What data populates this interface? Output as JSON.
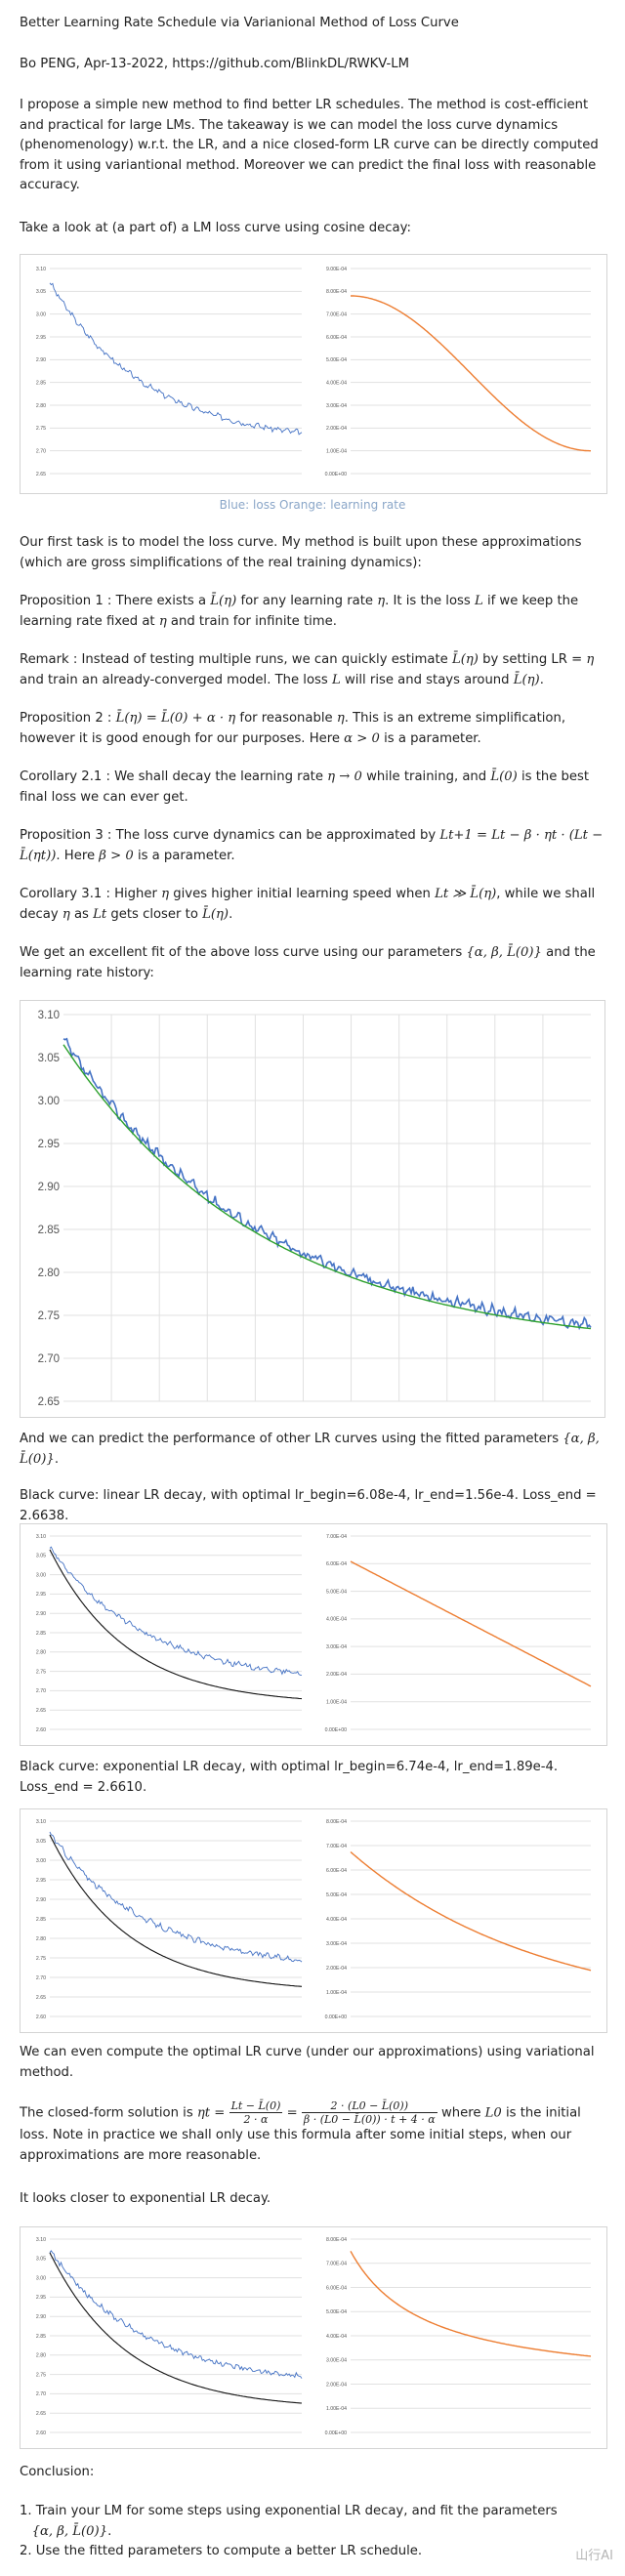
{
  "header": {
    "title": "Better Learning Rate Schedule via Varianional Method of Loss Curve",
    "byline": "Bo PENG, Apr-13-2022, https://github.com/BlinkDL/RWKV-LM"
  },
  "intro": "I propose a simple new method to find better LR schedules. The method is cost-efficient and practical for large LMs. The takeaway is we can model the loss curve dynamics (phenomenology) w.r.t. the LR, and a nice closed-form LR curve can be directly computed from it using variantional method. Moreover we can predict the final loss with reasonable accuracy.",
  "lookline": "Take a look at (a part of) a LM loss curve using cosine decay:",
  "caption": "Blue: loss Orange: learning rate",
  "task": "Our first task is to model the loss curve. My method is built upon these approximations (which are gross simplifications of the real training dynamics):",
  "prop1": {
    "a": "Proposition 1 : There exists a",
    "b": "for any learning rate",
    "c": ". It is the loss",
    "d": "if we keep the learning rate fixed at",
    "e": "and train for infinite time."
  },
  "remark": {
    "a": "Remark : Instead of testing multiple runs, we can quickly estimate",
    "b": "by setting LR =",
    "c": "and train an already-converged model. The loss",
    "d": "will rise and stays around",
    "e": "."
  },
  "prop2": {
    "a": "Proposition 2 :",
    "b": "for reasonable",
    "c": ". This is an extreme simplification, however it is good enough for our purposes. Here",
    "d": "is a parameter."
  },
  "cor21": {
    "a": "Corollary 2.1 : We shall decay the learning rate",
    "b": "while training, and",
    "c": "is the best final loss we can ever get."
  },
  "prop3": {
    "a": "Proposition 3 : The loss curve dynamics can be approximated by",
    "b": ". Here",
    "c": "is a parameter."
  },
  "cor31": {
    "a": "Corollary 3.1 : Higher",
    "b": "gives higher initial learning speed when",
    "c": ", while we shall decay",
    "d": "as",
    "e": "gets closer to",
    "f": "."
  },
  "fit": {
    "a": "We get an excellent fit of the above loss curve using our parameters",
    "b": "and the learning rate history:"
  },
  "predict": {
    "a": "And we can predict the performance of other LR curves using the fitted parameters",
    "b": "."
  },
  "black_linear": "Black curve: linear LR decay, with optimal lr_begin=6.08e-4, lr_end=1.56e-4. Loss_end = 2.6638.",
  "black_exp": "Black curve: exponential LR decay, with optimal lr_begin=6.74e-4, lr_end=1.89e-4. Loss_end = 2.6610.",
  "compute": "We can even compute the optimal LR curve (under our approximations) using variational method.",
  "closed": {
    "a": "The closed-form solution is",
    "b": "where",
    "c": "is the initial loss. Note in practice we shall only use this formula after some initial steps, when our approximations are more reasonable."
  },
  "closer": "It looks closer to exponential LR decay.",
  "conclusion": {
    "title": "Conclusion:",
    "item1a": "1. Train your LM for some steps using exponential LR decay, and fit the parameters",
    "item1b": ".",
    "item2": "2. Use the fitted parameters to compute a better LR schedule."
  },
  "math": {
    "Leta": "L̄(η)",
    "eta": "η",
    "L": "L",
    "alpha_gt0": "α > 0",
    "eta_to0": "η → 0",
    "L0bar": "L̄(0)",
    "dyn": "Lt+1 = Lt − β · ηt · (Lt − L̄(ηt))",
    "beta_gt0": "β > 0",
    "Lt": "Lt",
    "Lt_gg": "Lt ≫ L̄(η)",
    "params": "{α, β, L̄(0)}",
    "prop2eq": "L̄(η) = L̄(0) + α · η",
    "L0": "L0",
    "sol_lhs": "ηt =",
    "sol_f1_num": "Lt − L̄(0)",
    "sol_f1_den": "2 · α",
    "sol_f2_num": "2 · (L0 − L̄(0))",
    "sol_f2_den": "β · (L0 − L̄(0)) · t + 4 · α"
  },
  "watermark": "山行AI",
  "colors": {
    "loss": "#4472c4",
    "lr": "#ed7d31",
    "fit": "#2ca02c",
    "pred": "#111111"
  },
  "chart_data": [
    {
      "name": "cosine-loss",
      "type": "line",
      "ylim": [
        2.65,
        3.1
      ],
      "yticks": [
        "3.10",
        "3.05",
        "3.00",
        "2.95",
        "2.90",
        "2.85",
        "2.80",
        "2.75",
        "2.70",
        "2.65"
      ],
      "series": [
        {
          "start": 3.07,
          "end": 2.713,
          "noise": 0.006
        }
      ]
    },
    {
      "name": "cosine-lr",
      "type": "line",
      "ylim": [
        0,
        0.0009
      ],
      "yticks": [
        "9.00E-04",
        "8.00E-04",
        "7.00E-04",
        "6.00E-04",
        "5.00E-04",
        "4.00E-04",
        "3.00E-04",
        "2.00E-04",
        "1.00E-04",
        "0.00E+00"
      ],
      "series": [
        {
          "start": 0.00078,
          "end": 0.0001
        }
      ]
    },
    {
      "name": "fit-chart",
      "type": "line",
      "ylim": [
        2.65,
        3.1
      ],
      "yticks": [
        "3.10",
        "3.05",
        "3.00",
        "2.95",
        "2.90",
        "2.85",
        "2.80",
        "2.75",
        "2.70",
        "2.65"
      ],
      "series": [
        {
          "start": 3.07,
          "end": 2.713,
          "noise": 0.006
        },
        {
          "start": 3.065,
          "end": 2.708
        }
      ]
    },
    {
      "name": "linear-loss",
      "type": "line",
      "ylim": [
        2.6,
        3.1
      ],
      "yticks": [
        "3.10",
        "3.05",
        "3.00",
        "2.95",
        "2.90",
        "2.85",
        "2.80",
        "2.75",
        "2.70",
        "2.65",
        "2.60"
      ],
      "series": [
        {
          "start": 3.07,
          "end": 2.718,
          "noise": 0.007
        },
        {
          "start": 3.065,
          "end": 2.6638
        }
      ]
    },
    {
      "name": "linear-lr",
      "type": "line",
      "ylim": [
        0,
        0.0007
      ],
      "yticks": [
        "7.00E-04",
        "6.00E-04",
        "5.00E-04",
        "4.00E-04",
        "3.00E-04",
        "2.00E-04",
        "1.00E-04",
        "0.00E+00"
      ],
      "series": [
        {
          "start": 0.000608,
          "end": 0.000156
        }
      ]
    },
    {
      "name": "exp-loss",
      "type": "line",
      "ylim": [
        2.6,
        3.1
      ],
      "yticks": [
        "3.10",
        "3.05",
        "3.00",
        "2.95",
        "2.90",
        "2.85",
        "2.80",
        "2.75",
        "2.70",
        "2.65",
        "2.60"
      ],
      "series": [
        {
          "start": 3.07,
          "end": 2.718,
          "noise": 0.007
        },
        {
          "start": 3.065,
          "end": 2.661
        }
      ]
    },
    {
      "name": "exp-lr",
      "type": "line",
      "ylim": [
        0,
        0.0008
      ],
      "yticks": [
        "8.00E-04",
        "7.00E-04",
        "6.00E-04",
        "5.00E-04",
        "4.00E-04",
        "3.00E-04",
        "2.00E-04",
        "1.00E-04",
        "0.00E+00"
      ],
      "series": [
        {
          "start": 0.000674,
          "end": 0.000189
        }
      ]
    },
    {
      "name": "var-loss",
      "type": "line",
      "ylim": [
        2.6,
        3.1
      ],
      "yticks": [
        "3.10",
        "3.05",
        "3.00",
        "2.95",
        "2.90",
        "2.85",
        "2.80",
        "2.75",
        "2.70",
        "2.65",
        "2.60"
      ],
      "series": [
        {
          "start": 3.07,
          "end": 2.718,
          "noise": 0.007
        },
        {
          "start": 3.065,
          "end": 2.66
        }
      ]
    },
    {
      "name": "var-lr",
      "type": "line",
      "ylim": [
        0,
        0.0008
      ],
      "yticks": [
        "8.00E-04",
        "7.00E-04",
        "6.00E-04",
        "5.00E-04",
        "4.00E-04",
        "3.00E-04",
        "2.00E-04",
        "1.00E-04",
        "0.00E+00"
      ],
      "series": [
        {
          "start": 0.00075,
          "end": 0.0002
        }
      ]
    }
  ]
}
